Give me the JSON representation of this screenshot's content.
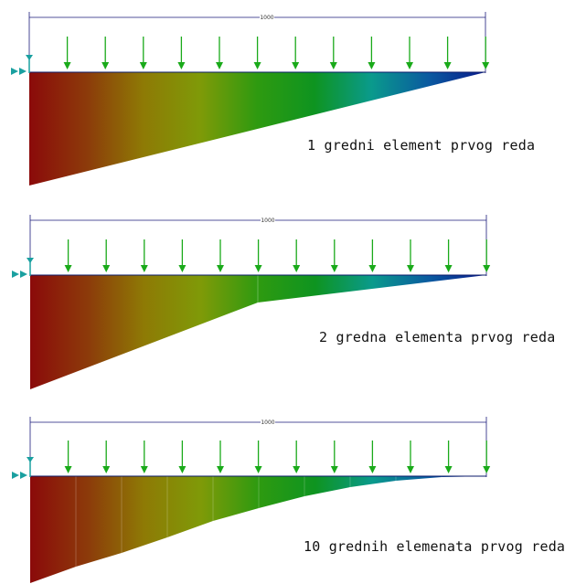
{
  "panels": [
    {
      "caption": "1 gredni element prvog reda",
      "dimension": "1000",
      "elements": 1
    },
    {
      "caption": "2 gredna elementa prvog reda",
      "dimension": "1000",
      "elements": 2
    },
    {
      "caption": "10 grednih elemenata prvog reda",
      "dimension": "1000",
      "elements": 10
    }
  ],
  "colors": {
    "gradient": [
      "#8b0a0a",
      "#8c3a0a",
      "#8e7a05",
      "#7f9a08",
      "#2e9a10",
      "#0e9420",
      "#0a9a8c",
      "#0a5aa0",
      "#0a1a8a"
    ],
    "load_arrow": "#1aaa1a",
    "support": "#1aa0a0",
    "dimension_line": "#1a1a7a"
  }
}
